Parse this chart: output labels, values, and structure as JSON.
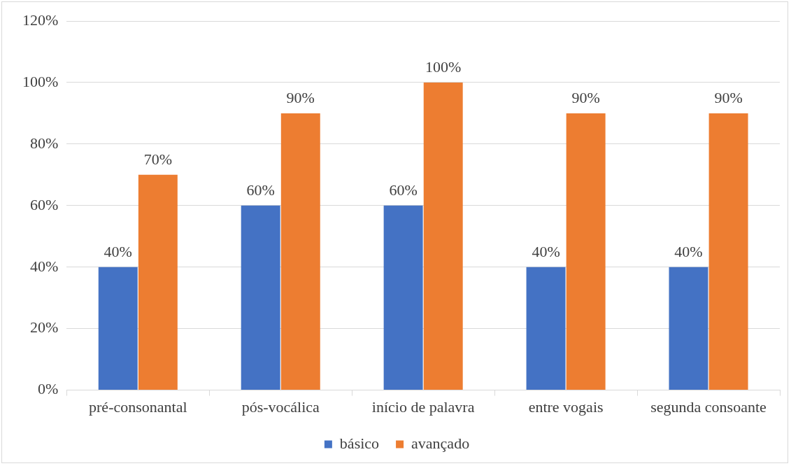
{
  "chart_data": {
    "type": "bar",
    "categories": [
      "pré-consonantal",
      "pós-vocálica",
      "início de palavra",
      "entre vogais",
      "segunda consoante"
    ],
    "series": [
      {
        "name": "básico",
        "color": "#4472c4",
        "values": [
          40,
          60,
          60,
          40,
          40
        ],
        "value_labels": [
          "40%",
          "60%",
          "60%",
          "40%",
          "40%"
        ]
      },
      {
        "name": "avançado",
        "color": "#ed7d31",
        "values": [
          70,
          90,
          100,
          90,
          90
        ],
        "value_labels": [
          "70%",
          "90%",
          "100%",
          "90%",
          "90%"
        ]
      }
    ],
    "ylim": [
      0,
      120
    ],
    "yticks": [
      {
        "value": 0,
        "label": "0%"
      },
      {
        "value": 20,
        "label": "20%"
      },
      {
        "value": 40,
        "label": "40%"
      },
      {
        "value": 60,
        "label": "60%"
      },
      {
        "value": 80,
        "label": "80%"
      },
      {
        "value": 100,
        "label": "100%"
      },
      {
        "value": 120,
        "label": "120%"
      }
    ],
    "grid": "y",
    "legend": "bottom"
  }
}
